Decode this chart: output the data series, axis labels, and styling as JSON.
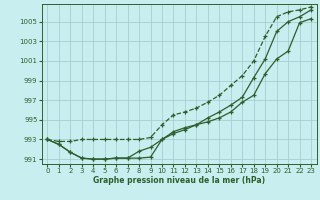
{
  "title": "Graphe pression niveau de la mer (hPa)",
  "background_color": "#c8eef0",
  "grid_color": "#a0c8cc",
  "line_color": "#2d5f2d",
  "xlim": [
    -0.5,
    23.5
  ],
  "ylim": [
    990.5,
    1006.8
  ],
  "yticks": [
    991,
    993,
    995,
    997,
    999,
    1001,
    1003,
    1005
  ],
  "xticks": [
    0,
    1,
    2,
    3,
    4,
    5,
    6,
    7,
    8,
    9,
    10,
    11,
    12,
    13,
    14,
    15,
    16,
    17,
    18,
    19,
    20,
    21,
    22,
    23
  ],
  "line1_dashed": [
    993.0,
    992.8,
    992.8,
    993.0,
    993.0,
    993.0,
    993.0,
    993.0,
    993.0,
    993.2,
    994.5,
    995.5,
    995.8,
    996.2,
    996.8,
    997.5,
    998.5,
    999.5,
    1001.0,
    1003.5,
    1005.5,
    1006.0,
    1006.2,
    1006.5
  ],
  "line2_solid": [
    993.0,
    992.5,
    991.7,
    991.1,
    991.0,
    991.0,
    991.1,
    991.1,
    991.1,
    991.2,
    993.0,
    993.8,
    994.2,
    994.5,
    994.8,
    995.2,
    995.8,
    996.8,
    997.5,
    999.7,
    1001.2,
    1002.0,
    1004.9,
    1005.3
  ],
  "line3_solid": [
    993.0,
    992.5,
    991.7,
    991.1,
    991.0,
    991.0,
    991.1,
    991.1,
    991.8,
    992.2,
    993.0,
    993.6,
    994.0,
    994.5,
    995.2,
    995.8,
    996.5,
    997.3,
    999.3,
    1001.2,
    1004.0,
    1005.0,
    1005.5,
    1006.2
  ]
}
